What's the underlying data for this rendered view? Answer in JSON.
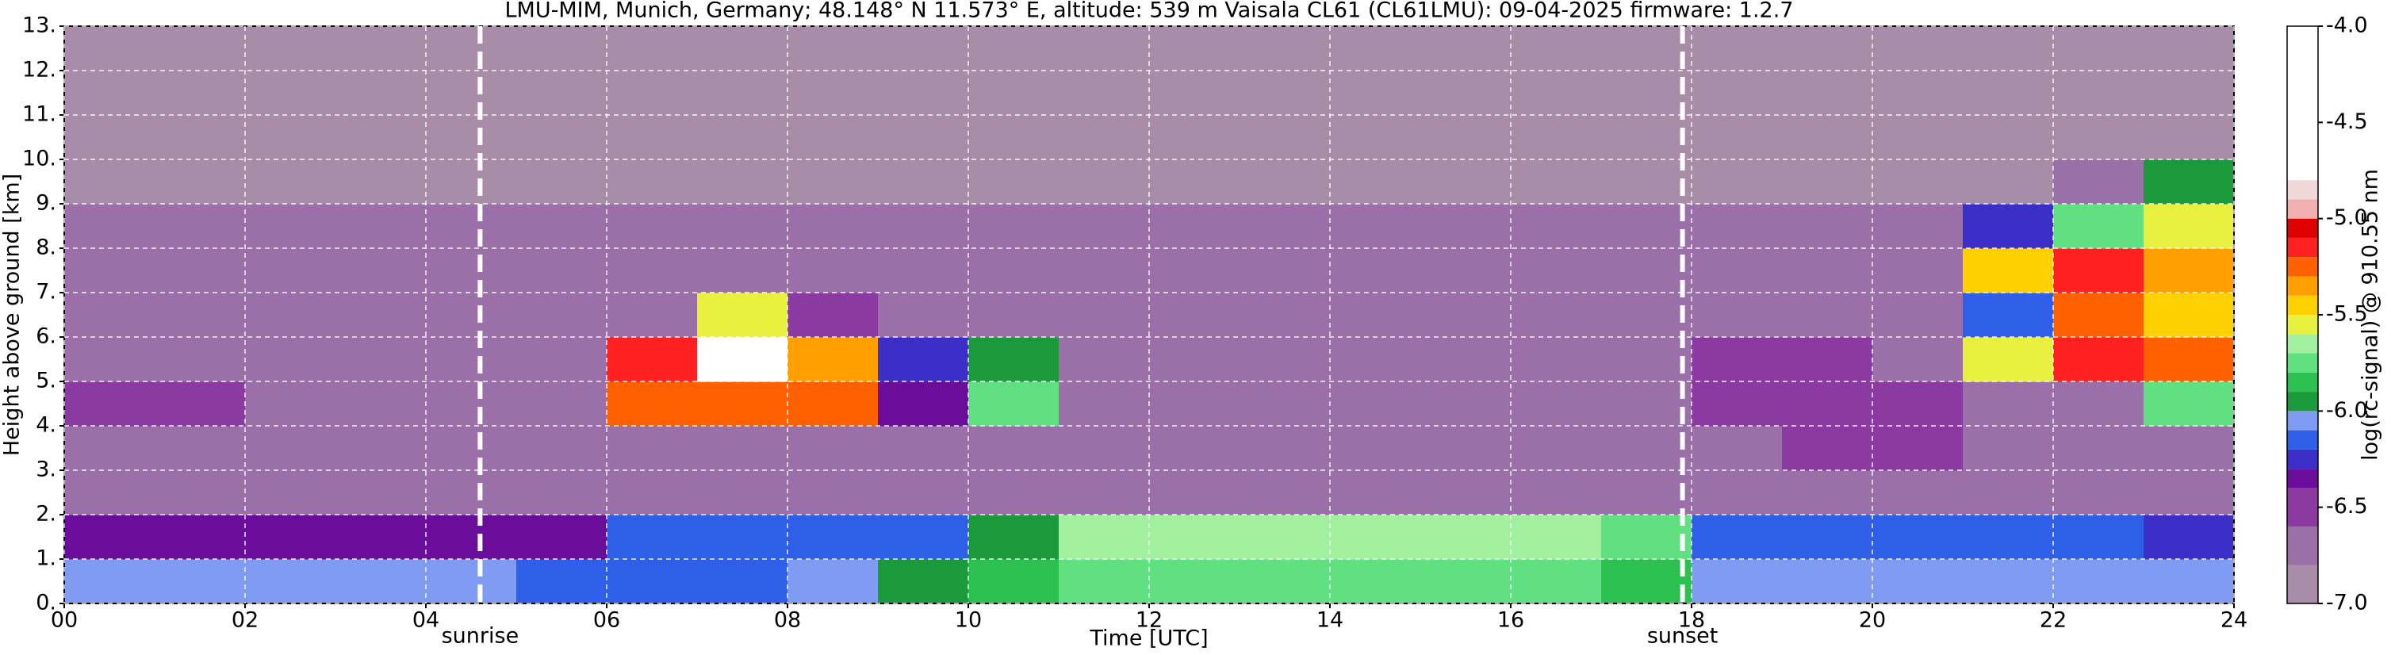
{
  "chart_data": {
    "type": "heatmap",
    "title": "LMU-MIM, Munich, Germany; 48.148° N 11.573° E, altitude: 539 m    Vaisala CL61 (CL61LMU): 09-04-2025    firmware: 1.2.7",
    "x_label": "Time [UTC]",
    "y_label": "Height above ground [km]",
    "xlim": [
      0,
      24
    ],
    "ylim": [
      0,
      13
    ],
    "xticks": [
      {
        "value": 0,
        "label": "00"
      },
      {
        "value": 2,
        "label": "02"
      },
      {
        "value": 4,
        "label": "04"
      },
      {
        "value": 6,
        "label": "06"
      },
      {
        "value": 8,
        "label": "08"
      },
      10,
      12,
      14,
      16,
      18,
      20,
      22,
      24
    ],
    "yticks": [
      {
        "value": 0,
        "label": "0."
      },
      {
        "value": 1,
        "label": "1."
      },
      {
        "value": 2,
        "label": "2."
      },
      {
        "value": 3,
        "label": "3."
      },
      {
        "value": 4,
        "label": "4."
      },
      {
        "value": 5,
        "label": "5."
      },
      {
        "value": 6,
        "label": "6."
      },
      {
        "value": 7,
        "label": "7."
      },
      {
        "value": 8,
        "label": "8."
      },
      {
        "value": 9,
        "label": "9."
      },
      {
        "value": 10,
        "label": "10."
      },
      {
        "value": 11,
        "label": "11."
      },
      {
        "value": 12,
        "label": "12."
      },
      {
        "value": 13,
        "label": "13."
      }
    ],
    "grid": true,
    "annotations": [
      {
        "x": 4.6,
        "label": "sunrise"
      },
      {
        "x": 17.9,
        "label": "sunset"
      }
    ],
    "x_edges": [
      0,
      1,
      2,
      3,
      4,
      5,
      6,
      7,
      8,
      9,
      10,
      11,
      12,
      13,
      14,
      15,
      16,
      17,
      18,
      19,
      20,
      21,
      22,
      23,
      24
    ],
    "y_edges": [
      0,
      1,
      2,
      3,
      4,
      5,
      6,
      7,
      8,
      9,
      10,
      11,
      12,
      13
    ],
    "z": [
      [
        -6.1,
        -6.1,
        -6.1,
        -6.1,
        -6.1,
        -6.15,
        -6.15,
        -6.15,
        -6.1,
        -6.0,
        -5.85,
        -5.8,
        -5.8,
        -5.8,
        -5.8,
        -5.8,
        -5.8,
        -5.85,
        -6.1,
        -6.1,
        -6.1,
        -6.1,
        -6.1,
        -6.1
      ],
      [
        -6.4,
        -6.4,
        -6.4,
        -6.4,
        -6.4,
        -6.35,
        -6.2,
        -6.2,
        -6.2,
        -6.2,
        -6.0,
        -5.7,
        -5.7,
        -5.7,
        -5.7,
        -5.7,
        -5.7,
        -5.75,
        -6.2,
        -6.2,
        -6.2,
        -6.2,
        -6.2,
        -6.25
      ],
      [
        -6.7,
        -6.7,
        -6.7,
        -6.7,
        -6.7,
        -6.7,
        -6.7,
        -6.7,
        -6.7,
        -6.7,
        -6.7,
        -6.8,
        -6.8,
        -6.8,
        -6.8,
        -6.8,
        -6.8,
        -6.8,
        -6.7,
        -6.7,
        -6.7,
        -6.7,
        -6.7,
        -6.7
      ],
      [
        -6.75,
        -6.75,
        -6.75,
        -6.75,
        -6.75,
        -6.75,
        -6.75,
        -6.75,
        -6.75,
        -6.75,
        -6.75,
        -6.8,
        -6.8,
        -6.8,
        -6.8,
        -6.8,
        -6.8,
        -6.8,
        -6.75,
        -6.6,
        -6.6,
        -6.75,
        -6.75,
        -6.75
      ],
      [
        -6.5,
        -6.5,
        -6.65,
        -6.8,
        -6.8,
        -6.8,
        -5.3,
        -5.3,
        -5.3,
        -6.4,
        -5.8,
        -6.8,
        -6.8,
        -6.8,
        -6.8,
        -6.8,
        -6.8,
        -6.8,
        -6.5,
        -6.5,
        -6.5,
        -6.7,
        -6.7,
        -5.8
      ],
      [
        -6.8,
        -6.8,
        -6.8,
        -6.8,
        -6.8,
        -6.7,
        -5.2,
        -4.8,
        -5.4,
        -6.3,
        -6.0,
        -6.8,
        -6.8,
        -6.8,
        -6.8,
        -6.8,
        -6.8,
        -6.8,
        -6.5,
        -6.5,
        -6.7,
        -5.6,
        -5.2,
        -5.3
      ],
      [
        -6.8,
        -6.8,
        -6.8,
        -6.8,
        -6.8,
        -6.8,
        -6.7,
        -5.6,
        -6.6,
        -6.7,
        -6.8,
        -6.8,
        -6.8,
        -6.8,
        -6.8,
        -6.8,
        -6.8,
        -6.8,
        -6.8,
        -6.8,
        -6.8,
        -6.2,
        -5.3,
        -5.5
      ],
      [
        -6.8,
        -6.8,
        -6.8,
        -6.8,
        -6.8,
        -6.8,
        -6.8,
        -6.8,
        -6.8,
        -6.8,
        -6.8,
        -6.8,
        -6.8,
        -6.8,
        -6.8,
        -6.8,
        -6.8,
        -6.8,
        -6.8,
        -6.8,
        -6.8,
        -5.5,
        -5.2,
        -5.4
      ],
      [
        -6.8,
        -6.8,
        -6.8,
        -6.8,
        -6.8,
        -6.8,
        -6.8,
        -6.8,
        -6.8,
        -6.8,
        -6.8,
        -6.8,
        -6.8,
        -6.8,
        -6.8,
        -6.8,
        -6.8,
        -6.8,
        -6.8,
        -6.8,
        -6.8,
        -6.3,
        -5.8,
        -5.6
      ],
      [
        -6.85,
        -6.85,
        -6.85,
        -6.85,
        -6.85,
        -6.85,
        -6.85,
        -6.85,
        -6.85,
        -6.85,
        -6.85,
        -6.85,
        -6.85,
        -6.85,
        -6.85,
        -6.85,
        -6.85,
        -6.85,
        -6.85,
        -6.85,
        -6.85,
        -6.85,
        -6.7,
        -6.0
      ],
      [
        -6.85,
        -6.85,
        -6.85,
        -6.85,
        -6.85,
        -6.85,
        -6.85,
        -6.85,
        -6.85,
        -6.85,
        -6.85,
        -6.85,
        -6.85,
        -6.85,
        -6.85,
        -6.85,
        -6.85,
        -6.85,
        -6.85,
        -6.85,
        -6.85,
        -6.85,
        -6.85,
        -6.85
      ],
      [
        -6.85,
        -6.85,
        -6.85,
        -6.85,
        -6.85,
        -6.85,
        -6.85,
        -6.85,
        -6.85,
        -6.85,
        -6.85,
        -6.85,
        -6.85,
        -6.85,
        -6.85,
        -6.85,
        -6.85,
        -6.85,
        -6.85,
        -6.85,
        -6.85,
        -6.85,
        -6.85,
        -6.85
      ],
      [
        -6.85,
        -6.85,
        -6.85,
        -6.85,
        -6.85,
        -6.85,
        -6.85,
        -6.85,
        -6.85,
        -6.85,
        -6.85,
        -6.85,
        -6.85,
        -6.85,
        -6.85,
        -6.85,
        -6.85,
        -6.85,
        -6.85,
        -6.85,
        -6.85,
        -6.85,
        -6.85,
        -6.85
      ]
    ],
    "colorbar": {
      "label": "log(rc-signal) @ 910.55 nm",
      "edges": [
        -7.0,
        -6.8,
        -6.6,
        -6.4,
        -6.3,
        -6.2,
        -6.1,
        -6.0,
        -5.9,
        -5.8,
        -5.7,
        -5.6,
        -5.5,
        -5.4,
        -5.3,
        -5.2,
        -5.1,
        -5.0,
        -4.9,
        -4.8,
        -4.0
      ],
      "colors": [
        "#a88ca8",
        "#9b6fa8",
        "#8a3aa0",
        "#6a0d9a",
        "#3b2fc8",
        "#2f5fe8",
        "#7f9cf2",
        "#1a9a3a",
        "#2cc050",
        "#60e080",
        "#a0f0a0",
        "#e8f040",
        "#ffd000",
        "#ffa000",
        "#ff6000",
        "#ff2020",
        "#e00000",
        "#f0b0b0",
        "#f0d8d8",
        "#ffffff"
      ],
      "ticks": [
        {
          "value": -7,
          "label": "-7.0"
        },
        -6.5,
        {
          "value": -6,
          "label": "-6.0"
        },
        -5.5,
        {
          "value": -5,
          "label": "-5.0"
        },
        -4.5,
        {
          "value": -4,
          "label": "-4.0"
        }
      ]
    }
  }
}
